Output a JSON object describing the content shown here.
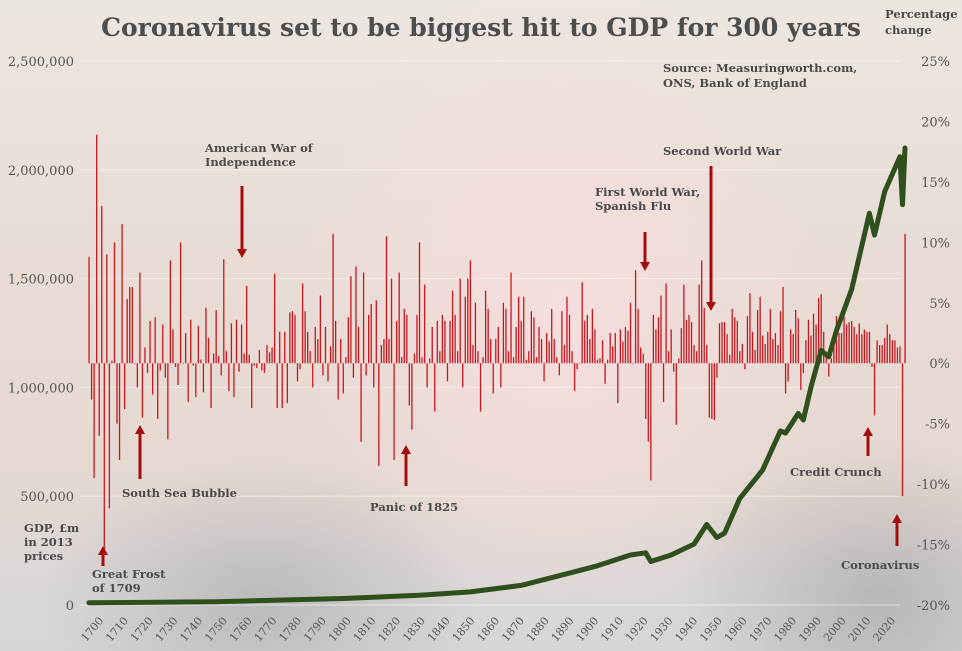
{
  "chart_data": {
    "type": "bar+line",
    "title": "Coronavirus set to be biggest hit to GDP for 300 years",
    "source": [
      "Source: Measuringworth.com,",
      "ONS, Bank of England"
    ],
    "left_axis": {
      "label": [
        "GDP, £m",
        "in 2013",
        "prices"
      ],
      "ylim": [
        0,
        2500000
      ],
      "ticks": [
        "0",
        "500,000",
        "1,000,000",
        "1,500,000",
        "2,000,000",
        "2,500,000"
      ]
    },
    "right_axis": {
      "label": [
        "Percentage",
        "change"
      ],
      "ylim": [
        -20,
        25
      ],
      "ticks": [
        "-20%",
        "-15%",
        "-10%",
        "-5%",
        "0%",
        "5%",
        "10%",
        "15%",
        "20%",
        "25%"
      ]
    },
    "x_ticks": [
      "1700",
      "1710",
      "1720",
      "1730",
      "1740",
      "1750",
      "1760",
      "1770",
      "1780",
      "1790",
      "1800",
      "1810",
      "1820",
      "1830",
      "1840",
      "1850",
      "1860",
      "1870",
      "1880",
      "1890",
      "1900",
      "1910",
      "1920",
      "1930",
      "1940",
      "1950",
      "1960",
      "1970",
      "1980",
      "1990",
      "2000",
      "2010",
      "2020"
    ],
    "grid": true,
    "colors": {
      "bars": "#c8161d",
      "line": "#2f4f1c",
      "arrows": "#a50d0d",
      "text": "#4a4a4a"
    },
    "pct_change": {
      "start_year": 1700,
      "values": [
        8.8,
        -3,
        -9.5,
        18.9,
        -6,
        13,
        -15.5,
        9,
        -12,
        0.2,
        10,
        -5,
        -8,
        11.5,
        -3.8,
        5.3,
        6.3,
        6.3,
        0,
        -2,
        7.5,
        -4.5,
        1.3,
        -0.8,
        3.5,
        -2.6,
        3.8,
        -4.6,
        -0.6,
        3.2,
        -1.2,
        -6.3,
        8.5,
        2.8,
        -0.3,
        -1.8,
        10,
        0,
        2.5,
        -3.2,
        3.6,
        -0.2,
        -2.8,
        3.1,
        0.3,
        -2.4,
        4.6,
        2.1,
        -3.7,
        0.8,
        4.4,
        0.6,
        -1,
        8.6,
        1,
        -2.3,
        3.3,
        -2.8,
        3.6,
        -0.7,
        3.2,
        0.8,
        6.4,
        0.7,
        -3.7,
        -0.2,
        -0.4,
        1.1,
        -0.6,
        -0.8,
        1.5,
        0.9,
        1.3,
        7.4,
        -3.7,
        2.6,
        -3.7,
        2.6,
        -3.3,
        4.2,
        4.3,
        4,
        -1.5,
        -0.5,
        6.6,
        4.3,
        2.6,
        1,
        -2,
        3,
        2,
        5.6,
        -1,
        3,
        -1.5,
        1.4,
        10.7,
        3.5,
        -3,
        2,
        -2.5,
        0.5,
        3.8,
        7.2,
        -1.2,
        8,
        3,
        -6.5,
        7.5,
        -1,
        4,
        4.9,
        -2,
        5.2,
        -8.5,
        1.5,
        2,
        10.5,
        2,
        7,
        -8,
        3.5,
        7.5,
        0.5,
        4.5,
        4,
        -3.5,
        -5.5,
        0.8,
        4,
        10,
        0.5,
        6.5,
        -2,
        0.4,
        3,
        -4,
        3.5,
        1,
        4,
        3.5,
        -1.5,
        3.5,
        6,
        4,
        1,
        7,
        -2,
        5.5,
        7,
        8.5,
        1.5,
        5,
        1,
        -4,
        0.5,
        6,
        4.5,
        2,
        -2.5,
        2,
        3,
        -2,
        5,
        4.5,
        1,
        7.5,
        0.5,
        3,
        5.5,
        3.5,
        5.5,
        0.3,
        1,
        4.3,
        3.8,
        0.5,
        3,
        2,
        -1.5,
        2.5,
        1.8,
        4.5,
        2,
        0.5,
        -1,
        4.3,
        1.5,
        5.5,
        4,
        1,
        -2.3,
        -0.5,
        0,
        6.7,
        3.5,
        4,
        2,
        4.5,
        2.8,
        0.3,
        0.4,
        1.9,
        -1.7,
        0.3,
        2.5,
        1.4,
        2.5,
        -3.3,
        2.8,
        1.8,
        3,
        2.7,
        5,
        0,
        7.7,
        4.5,
        1.3,
        0.8,
        -4.6,
        -6.5,
        -9.7,
        4,
        2.8,
        3.8,
        5.6,
        -3.2,
        6.6,
        1,
        2.8,
        -0.7,
        -5.1,
        0.4,
        2.9,
        6.5,
        3.6,
        4,
        3.4,
        1.5,
        1,
        6.5,
        8.5,
        4.6,
        1.5,
        -4.5,
        -4.6,
        -4.7,
        -1.2,
        3.3,
        3.4,
        3.4,
        2.4,
        0.7,
        4.5,
        3.8,
        3.5,
        1,
        1.6,
        -0.5,
        3.9,
        5.8,
        2.6,
        1.1,
        4.4,
        5.5,
        2.3,
        1.6,
        2.6,
        4.5,
        2,
        2.5,
        1.5,
        4.3,
        6.3,
        -2.5,
        -1.5,
        2.8,
        2.4,
        4.4,
        3.7,
        -2.2,
        -0.8,
        1.9,
        3.6,
        2.3,
        4.1,
        3.2,
        5.4,
        5.7,
        2.6,
        0.7,
        -1.1,
        0.4,
        2.5,
        3.9,
        2.5,
        2.5,
        4.9,
        3.2,
        3.4,
        3.5,
        3,
        2.4,
        3.3,
        2.4,
        2.8,
        2.6,
        2.6,
        -0.3,
        -4.3,
        1.9,
        1.5,
        1.5,
        2.1,
        3.2,
        2.4,
        1.9,
        1.9,
        1.3,
        1.4,
        -11,
        10.7
      ]
    },
    "gdp": {
      "x": [
        1700,
        1750,
        1800,
        1830,
        1850,
        1870,
        1890,
        1900,
        1913,
        1919,
        1921,
        1929,
        1938,
        1943,
        1947,
        1950,
        1956,
        1965,
        1972,
        1974,
        1979,
        1981,
        1984,
        1988,
        1991,
        1994,
        2000,
        2007,
        2009,
        2013,
        2019,
        2020,
        2021
      ],
      "y": [
        10000,
        15000,
        30000,
        45000,
        60000,
        90000,
        150000,
        180000,
        230000,
        240000,
        200000,
        230000,
        280000,
        370000,
        310000,
        330000,
        490000,
        620000,
        800000,
        790000,
        880000,
        850000,
        1000000,
        1170000,
        1140000,
        1260000,
        1450000,
        1800000,
        1700000,
        1900000,
        2060000,
        1840000,
        2100000
      ]
    },
    "annotations": [
      {
        "lines": [
          "American War of",
          "Independence"
        ],
        "dir": "down"
      },
      {
        "lines": [
          "South Sea Bubble"
        ],
        "dir": "up"
      },
      {
        "lines": [
          "Great Frost",
          "of 1709"
        ],
        "dir": "up"
      },
      {
        "lines": [
          "Panic of 1825"
        ],
        "dir": "up"
      },
      {
        "lines": [
          "First World War,",
          "Spanish Flu"
        ],
        "dir": "down"
      },
      {
        "lines": [
          "Second World War"
        ],
        "dir": "down"
      },
      {
        "lines": [
          "Credit Crunch"
        ],
        "dir": "up"
      },
      {
        "lines": [
          "Coronavirus"
        ],
        "dir": "up"
      }
    ]
  }
}
